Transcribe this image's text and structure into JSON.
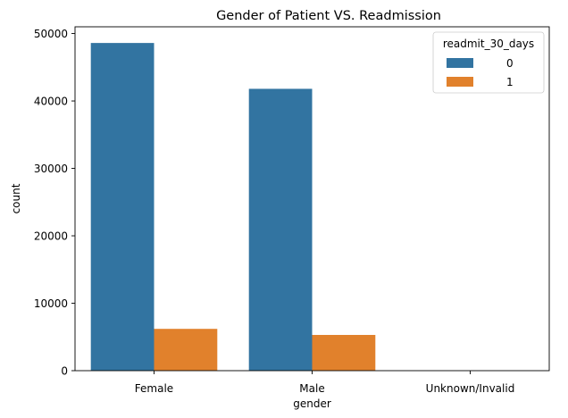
{
  "chart_data": {
    "type": "bar",
    "title": "Gender of Patient VS. Readmission",
    "xlabel": "gender",
    "ylabel": "count",
    "categories": [
      "Female",
      "Male",
      "Unknown/Invalid"
    ],
    "series": [
      {
        "name": "0",
        "values": [
          48600,
          41800,
          3
        ],
        "color": "#3274a1"
      },
      {
        "name": "1",
        "values": [
          6200,
          5300,
          0
        ],
        "color": "#e1812c"
      }
    ],
    "ylim": [
      0,
      51000
    ],
    "yticks": [
      0,
      10000,
      20000,
      30000,
      40000,
      50000
    ],
    "legend": {
      "title": "readmit_30_days",
      "placement": "top-right"
    },
    "grid": false
  }
}
